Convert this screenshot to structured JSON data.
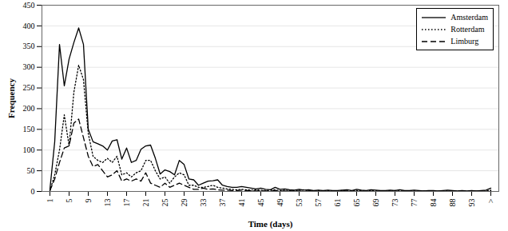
{
  "chart_data": {
    "type": "line",
    "x_label": "Time (days)",
    "y_label": "Frequency",
    "categories": [
      "1",
      null,
      null,
      null,
      "5",
      null,
      null,
      null,
      "9",
      null,
      null,
      null,
      "13",
      null,
      null,
      null,
      "17",
      null,
      null,
      null,
      "21",
      null,
      null,
      null,
      "25",
      null,
      null,
      null,
      "29",
      null,
      null,
      null,
      "33",
      null,
      null,
      null,
      "37",
      null,
      null,
      null,
      "41",
      null,
      null,
      null,
      "45",
      null,
      null,
      null,
      "49",
      null,
      null,
      null,
      "53",
      null,
      null,
      null,
      "57",
      null,
      null,
      null,
      "61",
      null,
      null,
      null,
      "65",
      null,
      null,
      null,
      "69",
      null,
      null,
      null,
      "73",
      null,
      null,
      null,
      "77",
      null,
      null,
      null,
      "84",
      null,
      null,
      null,
      "88",
      null,
      null,
      null,
      "93",
      null,
      null,
      null,
      ">"
    ],
    "series": [
      {
        "name": "Amsterdam",
        "color": "#000000",
        "line_style": "solid",
        "values": [
          5,
          120,
          355,
          255,
          320,
          360,
          395,
          355,
          150,
          120,
          115,
          110,
          100,
          122,
          125,
          78,
          105,
          70,
          75,
          102,
          110,
          112,
          80,
          42,
          52,
          48,
          40,
          75,
          65,
          30,
          28,
          15,
          20,
          25,
          26,
          28,
          15,
          12,
          10,
          10,
          12,
          10,
          8,
          6,
          8,
          5,
          4,
          10,
          5,
          6,
          4,
          3,
          5,
          3,
          4,
          2,
          3,
          2,
          3,
          2,
          2,
          3,
          4,
          2,
          5,
          3,
          2,
          4,
          3,
          2,
          2,
          3,
          2,
          4,
          2,
          2,
          3,
          2,
          1,
          2,
          2,
          1,
          2,
          3,
          2,
          1,
          2,
          1,
          2,
          1,
          2,
          3,
          8
        ]
      },
      {
        "name": "Rotterdam",
        "color": "#000000",
        "line_style": "dotted",
        "values": [
          2,
          40,
          100,
          185,
          110,
          240,
          305,
          270,
          140,
          85,
          75,
          70,
          80,
          70,
          85,
          40,
          45,
          35,
          45,
          50,
          75,
          75,
          50,
          30,
          35,
          20,
          35,
          45,
          40,
          15,
          15,
          10,
          10,
          12,
          15,
          10,
          8,
          6,
          5,
          4,
          5,
          4,
          3,
          4,
          3,
          2,
          3,
          4,
          2,
          3,
          2,
          2,
          3,
          4,
          2,
          1,
          2,
          1,
          2,
          1,
          1,
          2,
          1,
          1,
          2,
          1,
          1,
          2,
          1,
          1,
          1,
          1,
          2,
          1,
          1,
          1,
          1,
          0,
          1,
          1,
          1,
          0,
          1,
          1,
          0,
          1,
          1,
          0,
          1,
          0,
          1,
          1,
          3
        ]
      },
      {
        "name": "Limburg",
        "color": "#000000",
        "line_style": "dashed",
        "values": [
          2,
          30,
          70,
          105,
          110,
          165,
          175,
          130,
          85,
          60,
          65,
          50,
          35,
          40,
          50,
          25,
          30,
          25,
          30,
          25,
          45,
          20,
          15,
          10,
          20,
          10,
          15,
          20,
          15,
          10,
          5,
          5,
          8,
          5,
          6,
          4,
          3,
          3,
          2,
          2,
          3,
          2,
          2,
          1,
          2,
          1,
          1,
          2,
          1,
          1,
          1,
          1,
          1,
          0,
          1,
          1,
          0,
          1,
          0,
          1,
          0,
          1,
          1,
          0,
          0,
          1,
          0,
          0,
          1,
          0,
          0,
          1,
          0,
          0,
          1,
          0,
          0,
          0,
          1,
          0,
          0,
          1,
          0,
          0,
          1,
          0,
          0,
          0,
          0,
          1,
          0,
          0,
          2
        ]
      }
    ],
    "ylim": [
      0,
      450
    ],
    "yticks": [
      0,
      50,
      100,
      150,
      200,
      250,
      300,
      350,
      400,
      450
    ],
    "grid": true,
    "legend": "top-right"
  }
}
